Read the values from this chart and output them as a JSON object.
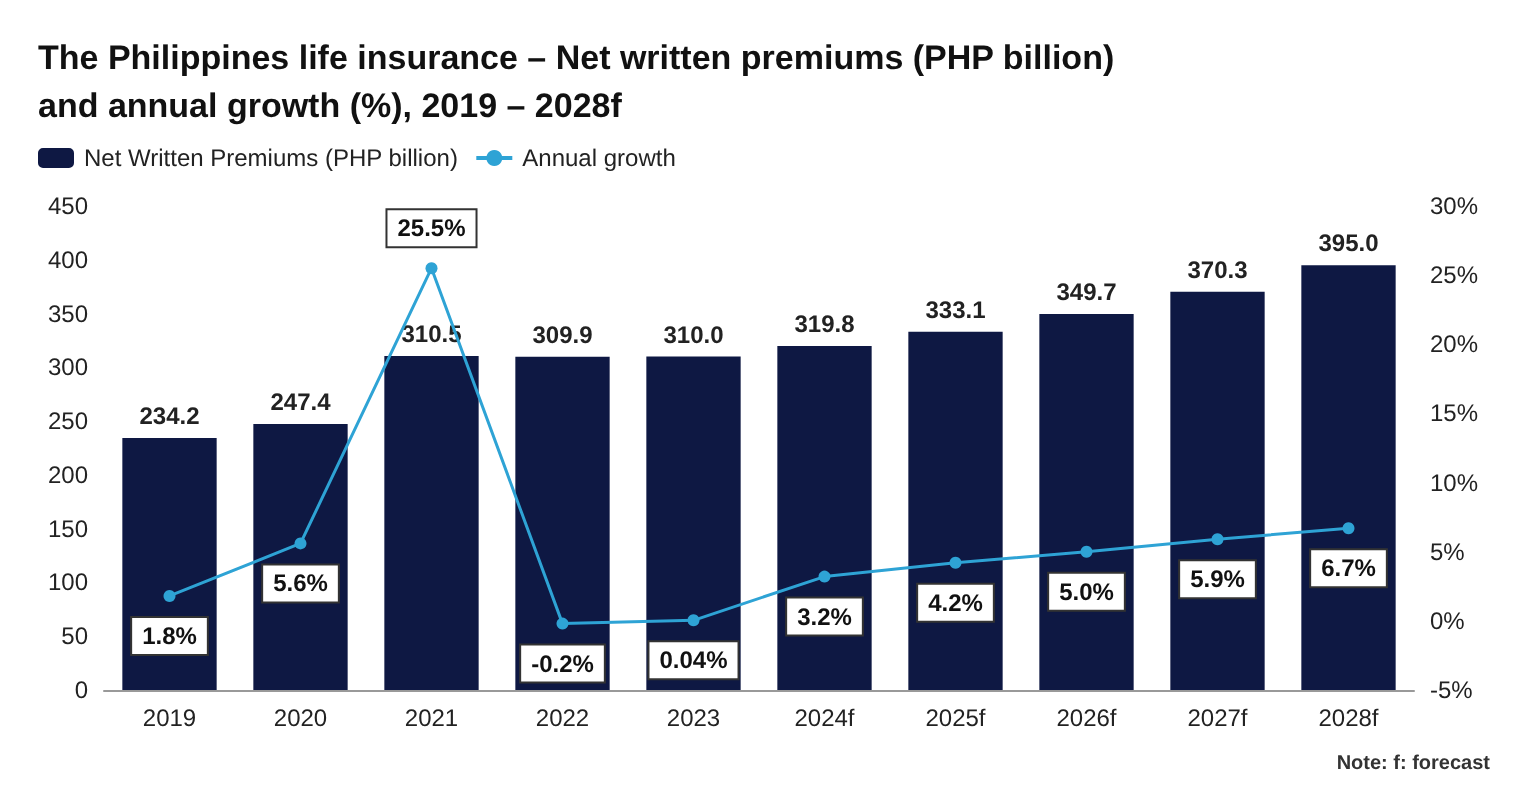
{
  "chart_data": {
    "type": "bar",
    "title": "The Philippines life insurance – Net written premiums (PHP billion)\nand annual growth (%), 2019 – 2028f",
    "categories": [
      "2019",
      "2020",
      "2021",
      "2022",
      "2023",
      "2024f",
      "2025f",
      "2026f",
      "2027f",
      "2028f"
    ],
    "series": [
      {
        "name": "Net Written Premiums (PHP billion)",
        "color": "#0e1843",
        "values": [
          234.2,
          247.4,
          310.5,
          309.9,
          310.0,
          319.8,
          333.1,
          349.7,
          370.3,
          395.0
        ],
        "value_labels": [
          "234.2",
          "247.4",
          "310.5",
          "309.9",
          "310.0",
          "319.8",
          "333.1",
          "349.7",
          "370.3",
          "395.0"
        ]
      },
      {
        "name": "Annual growth",
        "type": "line",
        "axis": "y2",
        "color": "#2ea3d5",
        "marker": "circle",
        "values": [
          1.8,
          5.6,
          25.5,
          -0.2,
          0.04,
          3.2,
          4.2,
          5.0,
          5.9,
          6.7
        ],
        "value_labels": [
          "1.8%",
          "5.6%",
          "25.5%",
          "-0.2%",
          "0.04%",
          "3.2%",
          "4.2%",
          "5.0%",
          "5.9%",
          "6.7%"
        ]
      }
    ],
    "ylim": [
      0,
      450
    ],
    "yticks": [
      0,
      50,
      100,
      150,
      200,
      250,
      300,
      350,
      400,
      450
    ],
    "y2lim": [
      -5,
      30
    ],
    "y2ticks": [
      {
        "value": -5,
        "label": "-5%"
      },
      {
        "value": 0,
        "label": "0%"
      },
      {
        "value": 5,
        "label": "5%"
      },
      {
        "value": 10,
        "label": "10%"
      },
      {
        "value": 15,
        "label": "15%"
      },
      {
        "value": 20,
        "label": "20%"
      },
      {
        "value": 25,
        "label": "25%"
      },
      {
        "value": 30,
        "label": "30%"
      }
    ],
    "grid": false,
    "legend": "top left",
    "annotations": [
      "Note: f: forecast"
    ]
  }
}
